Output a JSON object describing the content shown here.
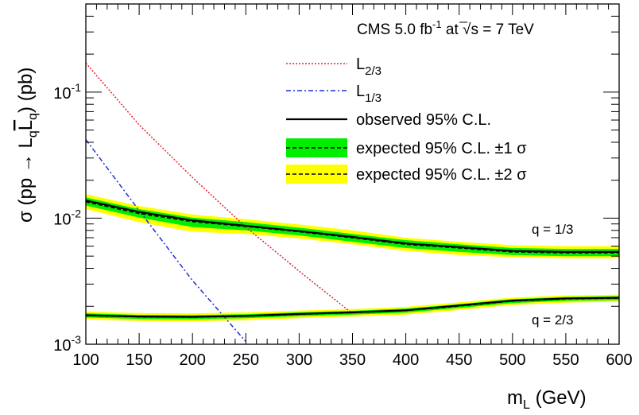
{
  "chart_data": {
    "type": "line",
    "title": "CMS 5.0 fb-1 at √s = 7 TeV",
    "title_parts": {
      "pre": "CMS 5.0 fb",
      "sup": "-1",
      "mid": " at ",
      "sqrt": "s",
      "post": " = 7 TeV"
    },
    "ylabel": {
      "main": "σ (pp → L",
      "sub1": "q",
      "bar": "L",
      "sub2": "q",
      "close": ") (pb)"
    },
    "xlabel": {
      "main": "m",
      "sub": "L",
      "unit": " (GeV)"
    },
    "yscale": "log",
    "xlim": [
      100,
      600
    ],
    "ylim": [
      0.001,
      0.5
    ],
    "xticks": [
      100,
      150,
      200,
      250,
      300,
      350,
      400,
      450,
      500,
      550,
      600
    ],
    "yticks": [
      {
        "value": 0.001,
        "base": "10",
        "exp": "-3"
      },
      {
        "value": 0.01,
        "base": "10",
        "exp": "-2"
      },
      {
        "value": 0.1,
        "base": "10",
        "exp": "-1"
      }
    ],
    "grid": false,
    "legend_position": "top-right",
    "legend": [
      {
        "key": "l23",
        "label": "L",
        "sub": "2/3",
        "style": "dotted",
        "color": "#e8212a"
      },
      {
        "key": "l13",
        "label": "L",
        "sub": "1/3",
        "style": "dashdot",
        "color": "#1c2fd6"
      },
      {
        "key": "obs",
        "label": "observed 95% C.L.",
        "style": "solid",
        "color": "#000000"
      },
      {
        "key": "exp1",
        "label": "expected 95% C.L. ±1 σ",
        "style": "band1",
        "color": "#000000",
        "band_color": "#00ee00"
      },
      {
        "key": "exp2",
        "label": "expected 95% C.L. ±2 σ",
        "style": "band2",
        "color": "#000000",
        "band_color": "#ffff00"
      }
    ],
    "annotations": [
      "q = 1/3",
      "q = 2/3"
    ],
    "x": [
      100,
      150,
      200,
      250,
      300,
      350,
      400,
      450,
      500,
      550,
      600
    ],
    "theory_l23": {
      "x": [
        100,
        150,
        200,
        250,
        300,
        350
      ],
      "y": [
        0.17,
        0.055,
        0.021,
        0.0085,
        0.0038,
        0.00175
      ]
    },
    "theory_l13": {
      "x": [
        100,
        150,
        200,
        250
      ],
      "y": [
        0.042,
        0.0115,
        0.0032,
        0.00105
      ]
    },
    "limits_q13": {
      "observed": [
        0.0138,
        0.0112,
        0.0096,
        0.0087,
        0.0079,
        0.0071,
        0.0063,
        0.0059,
        0.0055,
        0.0054,
        0.0054
      ],
      "expected": [
        0.0135,
        0.0109,
        0.0094,
        0.0086,
        0.0078,
        0.007,
        0.0062,
        0.0058,
        0.0054,
        0.0053,
        0.0053
      ],
      "band1_low": [
        0.0126,
        0.0101,
        0.0085,
        0.008,
        0.0073,
        0.0065,
        0.0058,
        0.0054,
        0.0051,
        0.005,
        0.005
      ],
      "band1_high": [
        0.0146,
        0.0118,
        0.0101,
        0.0093,
        0.0084,
        0.0075,
        0.0067,
        0.0062,
        0.0058,
        0.0057,
        0.0057
      ],
      "band2_low": [
        0.0118,
        0.0093,
        0.0078,
        0.0075,
        0.0069,
        0.0062,
        0.0055,
        0.0051,
        0.0049,
        0.0048,
        0.0048
      ],
      "band2_high": [
        0.0155,
        0.0125,
        0.0107,
        0.0098,
        0.0089,
        0.008,
        0.007,
        0.0065,
        0.0061,
        0.006,
        0.006
      ]
    },
    "limits_q23": {
      "observed": [
        0.0017,
        0.00166,
        0.00165,
        0.00168,
        0.00174,
        0.00179,
        0.00186,
        0.00203,
        0.00222,
        0.00231,
        0.00234
      ],
      "expected": [
        0.00169,
        0.00165,
        0.00164,
        0.00167,
        0.00173,
        0.00178,
        0.00185,
        0.00201,
        0.0022,
        0.00229,
        0.00232
      ],
      "band1_low": [
        0.00163,
        0.00159,
        0.00158,
        0.00161,
        0.00167,
        0.00172,
        0.00178,
        0.00194,
        0.00212,
        0.00221,
        0.00224
      ],
      "band1_high": [
        0.00176,
        0.00171,
        0.0017,
        0.00173,
        0.00179,
        0.00184,
        0.00192,
        0.00208,
        0.00228,
        0.00237,
        0.0024
      ],
      "band2_low": [
        0.00157,
        0.00153,
        0.00152,
        0.00155,
        0.00161,
        0.00166,
        0.00172,
        0.00187,
        0.00205,
        0.00214,
        0.00217
      ],
      "band2_high": [
        0.00182,
        0.00177,
        0.00176,
        0.00179,
        0.00185,
        0.0019,
        0.00198,
        0.00215,
        0.00235,
        0.00244,
        0.00247
      ]
    }
  }
}
